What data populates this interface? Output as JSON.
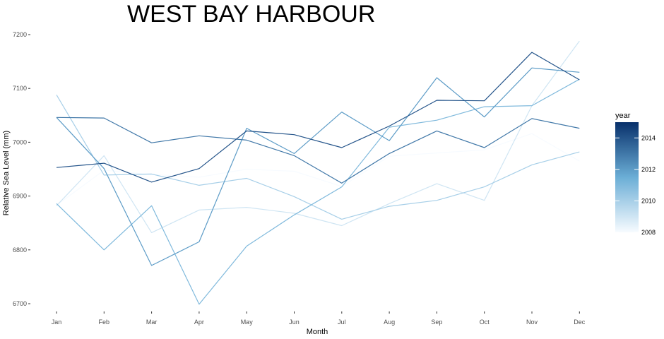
{
  "chart_data": {
    "type": "line",
    "title": "WEST BAY HARBOUR",
    "xlabel": "Month",
    "ylabel": "Relative Sea Level (mm)",
    "categories": [
      "Jan",
      "Feb",
      "Mar",
      "Apr",
      "May",
      "Jun",
      "Jul",
      "Aug",
      "Sep",
      "Oct",
      "Nov",
      "Dec"
    ],
    "yticks": [
      6700,
      6800,
      6900,
      7000,
      7100,
      7200
    ],
    "ylim": [
      6688,
      7200
    ],
    "grid": false,
    "legend": {
      "title": "year",
      "position": "right",
      "ticks": [
        2008,
        2010,
        2012,
        2014
      ],
      "range": [
        2008,
        2015
      ],
      "low_color": "#F7FBFF",
      "high_color": "#08306B"
    },
    "series": [
      {
        "year": 2008,
        "values": [
          6883,
          6948,
          6940,
          6935,
          6950,
          6946,
          6918,
          6974,
          6980,
          6986,
          7016,
          6965
        ]
      },
      {
        "year": 2009,
        "values": [
          6882,
          6975,
          6832,
          6874,
          6879,
          6868,
          6845,
          6886,
          6923,
          6892,
          7068,
          7188
        ]
      },
      {
        "year": 2010,
        "values": [
          7088,
          6939,
          6941,
          6920,
          6933,
          6899,
          6857,
          6881,
          6892,
          6917,
          6958,
          6982
        ]
      },
      {
        "year": 2011,
        "values": [
          6886,
          6800,
          6882,
          6699,
          6807,
          6865,
          6917,
          7028,
          7041,
          7066,
          7068,
          7117
        ]
      },
      {
        "year": 2012,
        "values": [
          7046,
          6951,
          6771,
          6815,
          7026,
          6979,
          7056,
          7003,
          7120,
          7047,
          7138,
          7130
        ]
      },
      {
        "year": 2013,
        "values": [
          7046,
          7045,
          6999,
          7012,
          7004,
          6975,
          6924,
          6979,
          7021,
          6990,
          7044,
          7026
        ]
      },
      {
        "year": 2014,
        "values": [
          6953,
          6961,
          6926,
          6951,
          7021,
          7014,
          6990,
          7030,
          7078,
          7077,
          7167,
          7116
        ]
      }
    ]
  }
}
